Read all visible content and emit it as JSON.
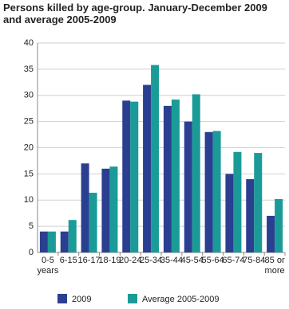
{
  "chart_data": {
    "type": "bar",
    "title": "Persons killed by age-group. January-December 2009 and average 2005-2009",
    "categories": [
      "0-5 years",
      "6-15",
      "16-17",
      "18-19",
      "20-24",
      "25-34",
      "35-44",
      "45-54",
      "55-64",
      "65-74",
      "75-84",
      "85 or more"
    ],
    "series": [
      {
        "name": "2009",
        "color": "#2b3f91",
        "values": [
          4,
          4,
          17,
          16,
          29,
          32,
          28,
          25,
          23,
          15,
          14,
          7
        ]
      },
      {
        "name": "Average 2005-2009",
        "color": "#1a9b97",
        "values": [
          4,
          6.2,
          11.4,
          16.4,
          28.8,
          35.8,
          29.2,
          30.2,
          23.2,
          19.2,
          19,
          10.2
        ]
      }
    ],
    "ylim": [
      0,
      40
    ],
    "yticks": [
      0,
      5,
      10,
      15,
      20,
      25,
      30,
      35,
      40
    ],
    "grid": true
  }
}
